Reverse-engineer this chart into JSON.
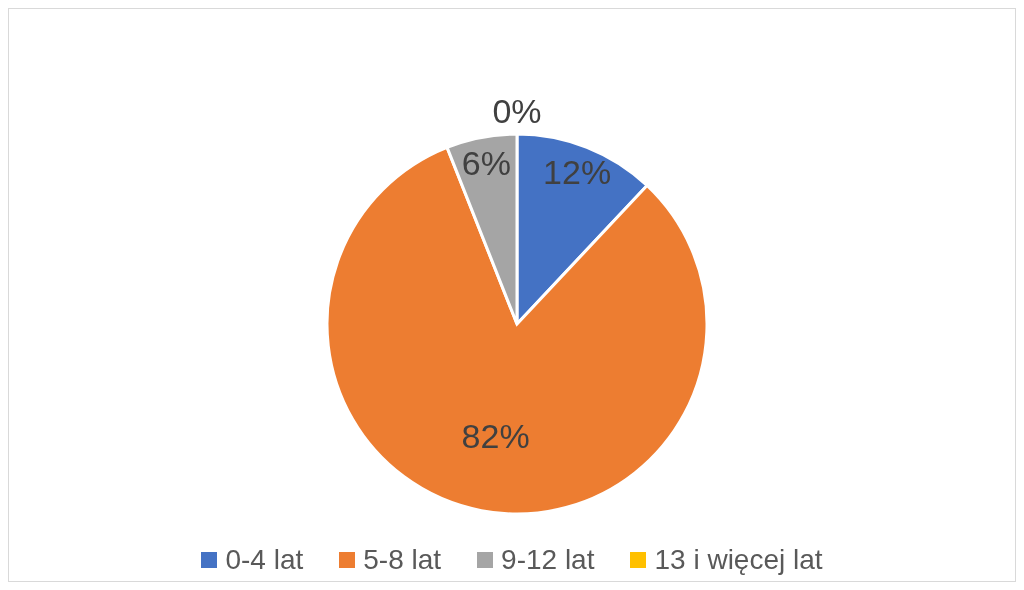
{
  "chart_data": {
    "type": "pie",
    "categories": [
      "0-4 lat",
      "5-8 lat",
      "9-12 lat",
      "13 i więcej lat"
    ],
    "values": [
      12,
      82,
      6,
      0
    ],
    "colors": [
      "#4472c4",
      "#ed7d31",
      "#a5a5a5",
      "#ffc000"
    ],
    "value_labels": [
      "12%",
      "82%",
      "6%",
      "0%"
    ],
    "legend": "bottom"
  }
}
